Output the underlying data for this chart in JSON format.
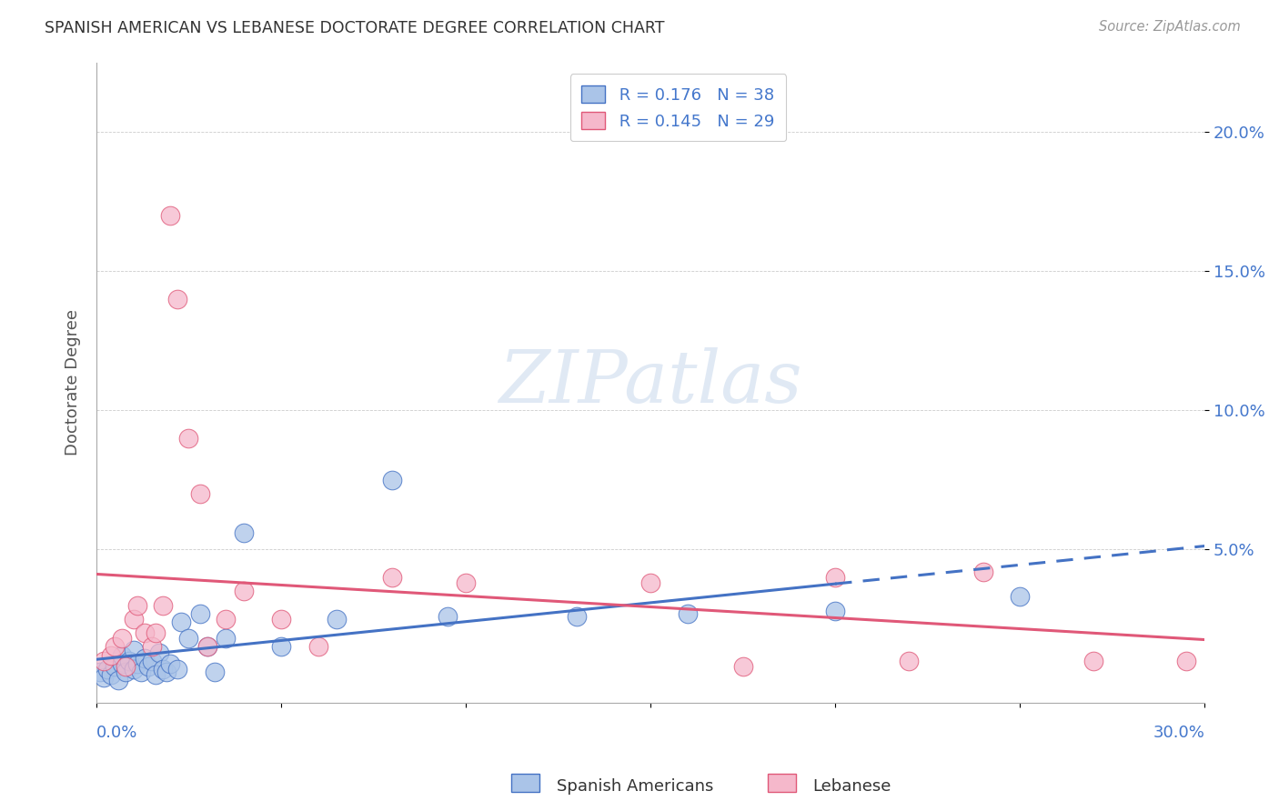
{
  "title": "SPANISH AMERICAN VS LEBANESE DOCTORATE DEGREE CORRELATION CHART",
  "source": "Source: ZipAtlas.com",
  "ylabel": "Doctorate Degree",
  "ytick_labels": [
    "5.0%",
    "10.0%",
    "15.0%",
    "20.0%"
  ],
  "ytick_values": [
    0.05,
    0.1,
    0.15,
    0.2
  ],
  "xlim": [
    0.0,
    0.3
  ],
  "ylim": [
    -0.005,
    0.225
  ],
  "spanish_color": "#aac4e8",
  "lebanese_color": "#f5b8cb",
  "spanish_line_color": "#4472c4",
  "lebanese_line_color": "#e05878",
  "watermark_text": "ZIPatlas",
  "spanish_x": [
    0.001,
    0.002,
    0.003,
    0.004,
    0.005,
    0.006,
    0.007,
    0.007,
    0.008,
    0.009,
    0.01,
    0.01,
    0.011,
    0.012,
    0.013,
    0.014,
    0.015,
    0.016,
    0.017,
    0.018,
    0.019,
    0.02,
    0.022,
    0.023,
    0.025,
    0.028,
    0.03,
    0.032,
    0.035,
    0.04,
    0.05,
    0.065,
    0.08,
    0.095,
    0.13,
    0.16,
    0.2,
    0.25
  ],
  "spanish_y": [
    0.006,
    0.004,
    0.007,
    0.005,
    0.008,
    0.003,
    0.009,
    0.012,
    0.006,
    0.01,
    0.007,
    0.014,
    0.009,
    0.006,
    0.011,
    0.008,
    0.01,
    0.005,
    0.013,
    0.007,
    0.006,
    0.009,
    0.007,
    0.024,
    0.018,
    0.027,
    0.015,
    0.006,
    0.018,
    0.056,
    0.015,
    0.025,
    0.075,
    0.026,
    0.026,
    0.027,
    0.028,
    0.033
  ],
  "lebanese_x": [
    0.002,
    0.004,
    0.005,
    0.007,
    0.008,
    0.01,
    0.011,
    0.013,
    0.015,
    0.016,
    0.018,
    0.02,
    0.022,
    0.025,
    0.028,
    0.03,
    0.035,
    0.04,
    0.05,
    0.06,
    0.08,
    0.1,
    0.15,
    0.175,
    0.2,
    0.22,
    0.24,
    0.27,
    0.295
  ],
  "lebanese_y": [
    0.01,
    0.012,
    0.015,
    0.018,
    0.008,
    0.025,
    0.03,
    0.02,
    0.015,
    0.02,
    0.03,
    0.17,
    0.14,
    0.09,
    0.07,
    0.015,
    0.025,
    0.035,
    0.025,
    0.015,
    0.04,
    0.038,
    0.038,
    0.008,
    0.04,
    0.01,
    0.042,
    0.01,
    0.01
  ],
  "sp_line_solid_end": 0.2,
  "sp_line_dash_end": 0.3,
  "lb_line_start": 0.0,
  "lb_line_end": 0.3
}
